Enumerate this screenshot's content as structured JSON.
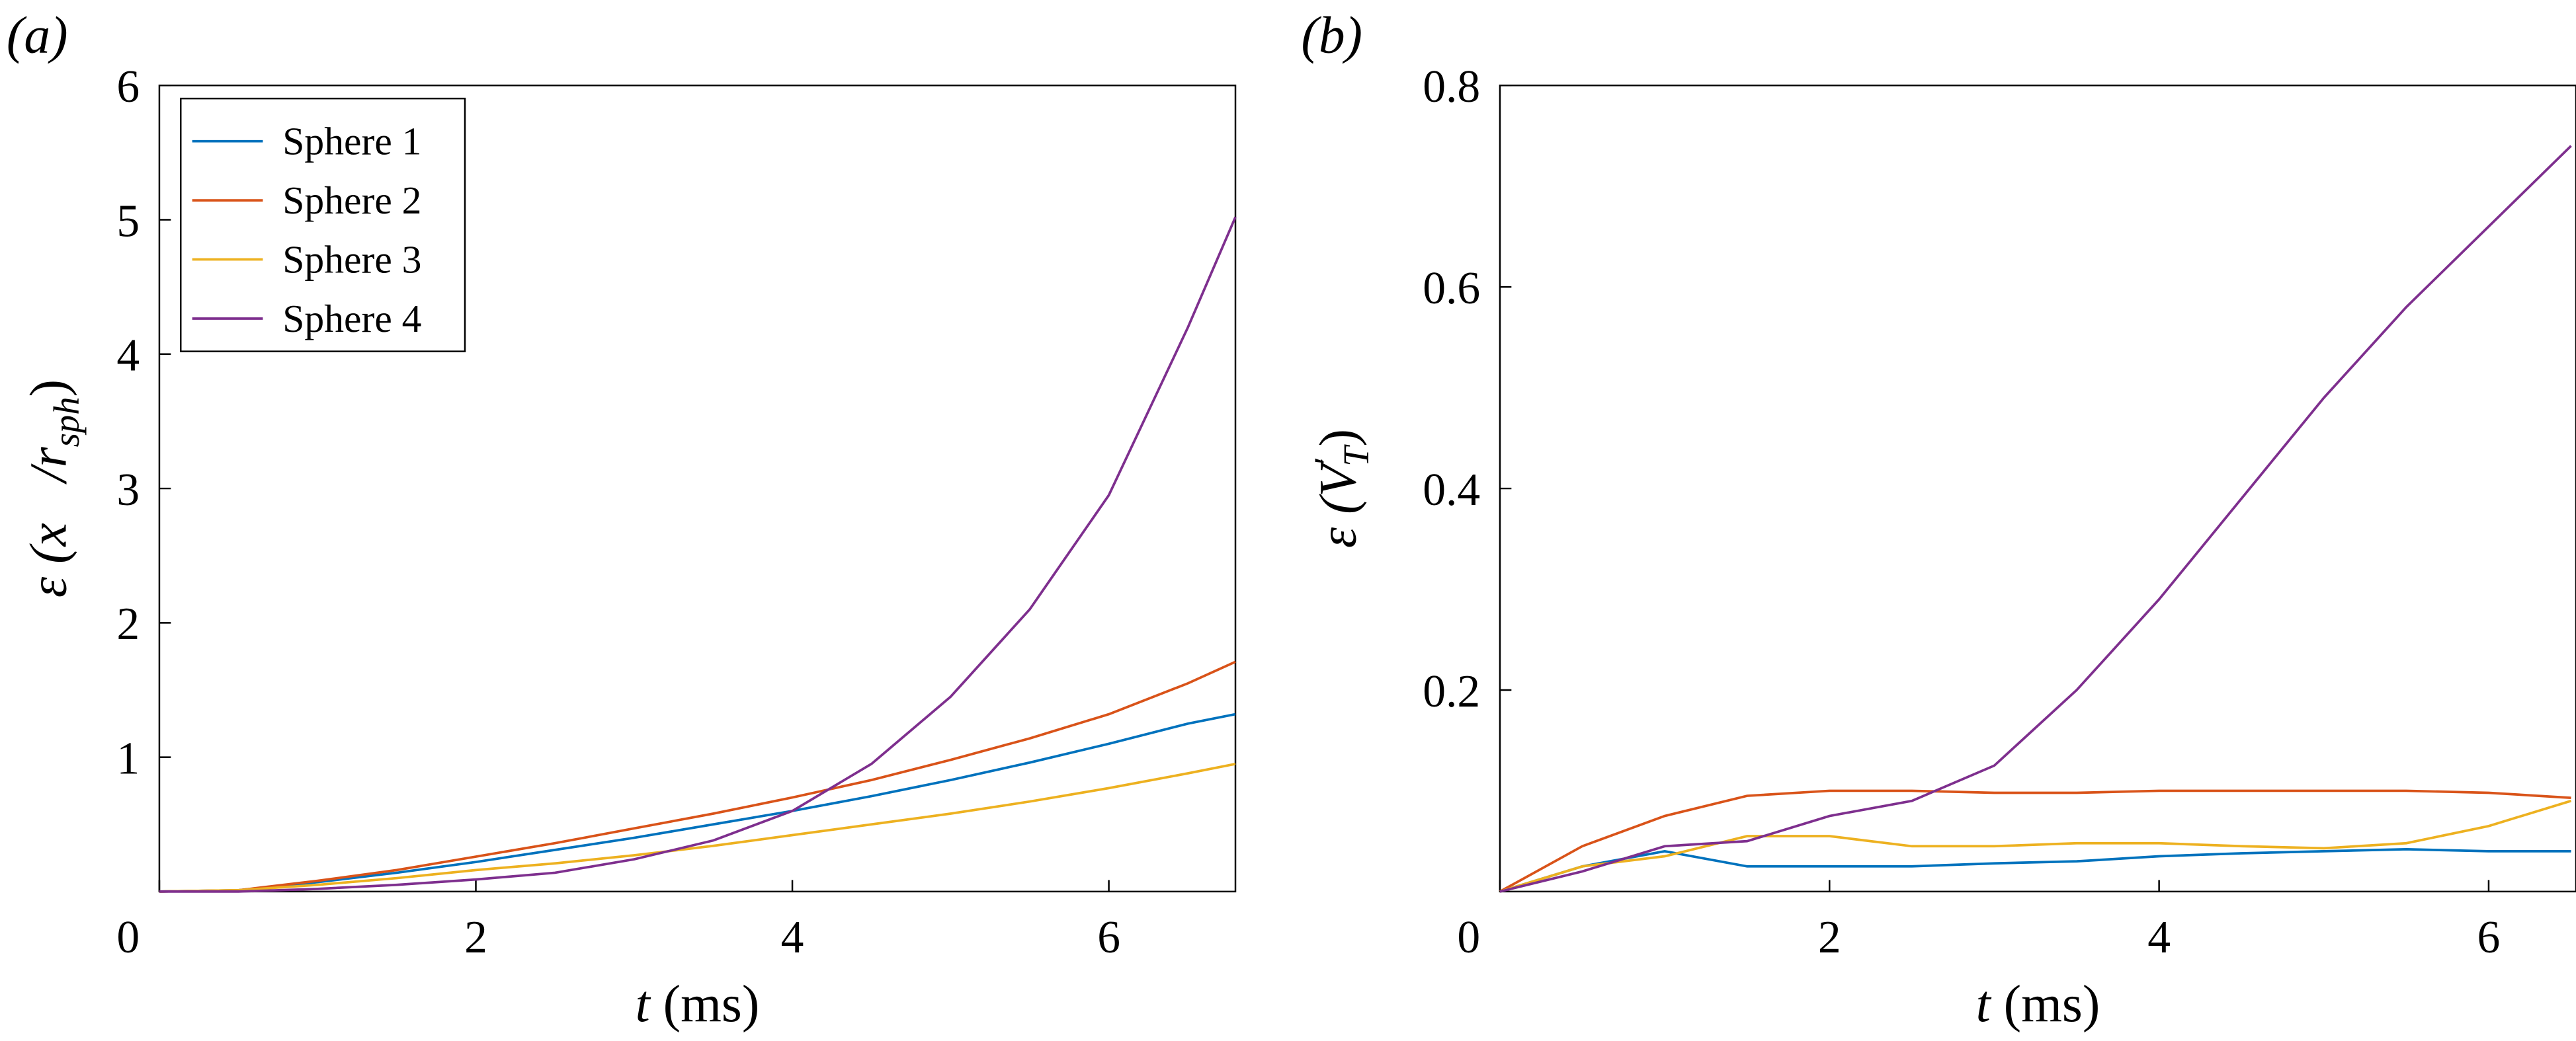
{
  "chart_data": [
    {
      "type": "line",
      "panel_label": "(a)",
      "x_label": {
        "var": "t",
        "unit": "(ms)"
      },
      "y_label": {
        "main": "ε (x⃗/r",
        "sub": "sph",
        "end": ")"
      },
      "x": [
        0,
        0.5,
        1,
        1.5,
        2,
        2.5,
        3,
        3.5,
        4,
        4.5,
        5,
        5.5,
        6,
        6.5,
        6.8
      ],
      "series": [
        {
          "name": "Sphere 1",
          "color": "#0072bd",
          "values": [
            0,
            0.01,
            0.07,
            0.14,
            0.22,
            0.31,
            0.4,
            0.5,
            0.6,
            0.71,
            0.83,
            0.96,
            1.1,
            1.25,
            1.32
          ]
        },
        {
          "name": "Sphere 2",
          "color": "#d95319",
          "values": [
            0,
            0.01,
            0.08,
            0.16,
            0.26,
            0.36,
            0.47,
            0.58,
            0.7,
            0.83,
            0.98,
            1.14,
            1.32,
            1.55,
            1.71
          ]
        },
        {
          "name": "Sphere 3",
          "color": "#edb120",
          "values": [
            0,
            0.01,
            0.05,
            0.1,
            0.16,
            0.21,
            0.27,
            0.34,
            0.42,
            0.5,
            0.58,
            0.67,
            0.77,
            0.88,
            0.95
          ]
        },
        {
          "name": "Sphere 4",
          "color": "#7e2f8e",
          "values": [
            0,
            0,
            0.02,
            0.05,
            0.09,
            0.14,
            0.24,
            0.38,
            0.6,
            0.95,
            1.45,
            2.1,
            2.95,
            4.2,
            5.02
          ]
        }
      ],
      "xlim": [
        0,
        6.8
      ],
      "ylim": [
        0,
        6
      ],
      "xticks": [
        0,
        2,
        4,
        6
      ],
      "yticks": [
        1,
        2,
        3,
        4,
        5,
        6
      ],
      "legend": "upper left"
    },
    {
      "type": "line",
      "panel_label": "(b)",
      "x_label": {
        "var": "t",
        "unit": "(ms)"
      },
      "y_label": {
        "main": "ε (V",
        "sup": "′",
        "sub": "T",
        "end": ")"
      },
      "x": [
        0,
        0.5,
        1,
        1.5,
        2,
        2.5,
        3,
        3.5,
        4,
        4.5,
        5,
        5.5,
        6,
        6.5
      ],
      "series": [
        {
          "color": "#0072bd",
          "values": [
            0,
            0.025,
            0.04,
            0.025,
            0.025,
            0.025,
            0.028,
            0.03,
            0.035,
            0.038,
            0.04,
            0.042,
            0.04,
            0.04
          ]
        },
        {
          "color": "#d95319",
          "values": [
            0,
            0.045,
            0.075,
            0.095,
            0.1,
            0.1,
            0.098,
            0.098,
            0.1,
            0.1,
            0.1,
            0.1,
            0.098,
            0.093
          ]
        },
        {
          "color": "#edb120",
          "values": [
            0,
            0.025,
            0.035,
            0.055,
            0.055,
            0.045,
            0.045,
            0.048,
            0.048,
            0.045,
            0.043,
            0.048,
            0.065,
            0.09
          ]
        },
        {
          "color": "#7e2f8e",
          "values": [
            0,
            0.02,
            0.045,
            0.05,
            0.075,
            0.09,
            0.125,
            0.2,
            0.29,
            0.39,
            0.49,
            0.58,
            0.66,
            0.74
          ]
        }
      ],
      "xlim": [
        0,
        6.53
      ],
      "ylim": [
        0,
        0.8
      ],
      "xticks": [
        0,
        2,
        4,
        6
      ],
      "yticks": [
        0.2,
        0.4,
        0.6,
        0.8
      ]
    }
  ]
}
